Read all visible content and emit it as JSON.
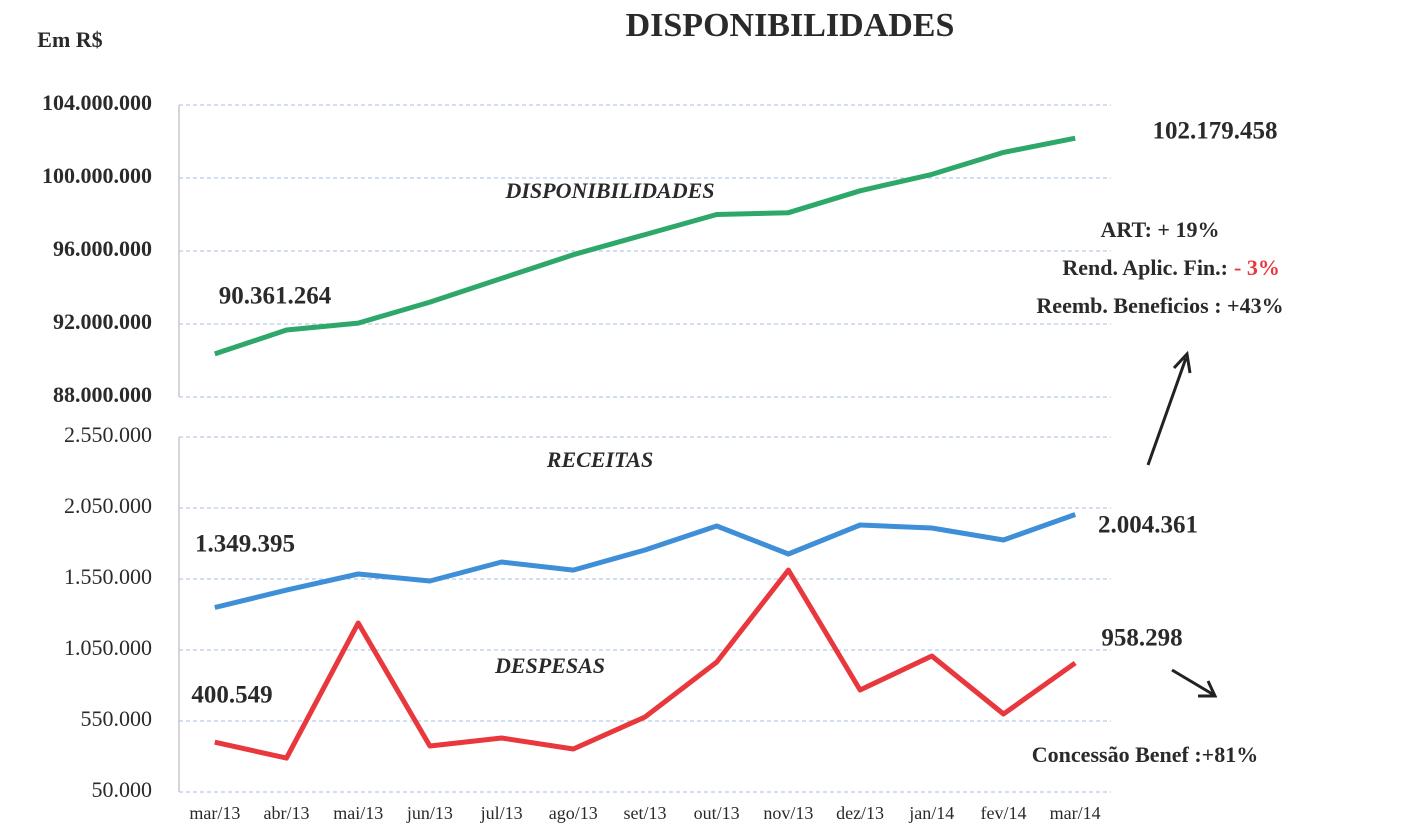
{
  "chart_data": [
    {
      "type": "line",
      "title": "DISPONIBILIDADES",
      "y_label": "Em R$",
      "categories": [
        "mar/13",
        "abr/13",
        "mai/13",
        "jun/13",
        "jul/13",
        "ago/13",
        "set/13",
        "out/13",
        "nov/13",
        "dez/13",
        "jan/14",
        "fev/14",
        "mar/14"
      ],
      "series": [
        {
          "name": "DISPONIBILIDADES",
          "color": "#2ea86a",
          "values": [
            90361264,
            91670000,
            92050000,
            93200000,
            94500000,
            95800000,
            96900000,
            98000000,
            98100000,
            99300000,
            100200000,
            101400000,
            102179458
          ],
          "value_labels": [
            "90.361.264",
            null,
            null,
            null,
            null,
            null,
            null,
            null,
            null,
            null,
            null,
            null,
            "102.179.458"
          ]
        }
      ],
      "ylim": [
        88000000,
        104000000
      ],
      "yticks": [
        {
          "value": 88000000,
          "label": "88.000.000"
        },
        {
          "value": 92000000,
          "label": "92.000.000"
        },
        {
          "value": 96000000,
          "label": "96.000.000"
        },
        {
          "value": 100000000,
          "label": "100.000.000"
        },
        {
          "value": 104000000,
          "label": "104.000.000"
        }
      ],
      "grid": true,
      "annotations": [
        "ART: + 19%",
        "Rend. Aplic. Fin.:",
        "- 3%",
        "Reemb. Beneficios : +43%"
      ]
    },
    {
      "type": "line",
      "categories": [
        "mar/13",
        "abr/13",
        "mai/13",
        "jun/13",
        "jul/13",
        "ago/13",
        "set/13",
        "out/13",
        "nov/13",
        "dez/13",
        "jan/14",
        "fev/14",
        "mar/14"
      ],
      "series": [
        {
          "name": "RECEITAS",
          "color": "#3f8fd8",
          "values": [
            1349395,
            1472000,
            1585000,
            1536000,
            1670000,
            1613000,
            1754000,
            1923000,
            1726000,
            1930000,
            1909000,
            1825000,
            2004361
          ],
          "value_labels": [
            "1.349.395",
            null,
            null,
            null,
            null,
            null,
            null,
            null,
            null,
            null,
            null,
            null,
            "2.004.361"
          ]
        },
        {
          "name": "DESPESAS",
          "color": "#e8383d",
          "values": [
            400549,
            289000,
            1240000,
            374000,
            430000,
            353000,
            578000,
            965000,
            1613000,
            768000,
            1008000,
            599000,
            958298
          ],
          "value_labels": [
            "400.549",
            null,
            null,
            null,
            null,
            null,
            null,
            null,
            null,
            null,
            null,
            null,
            "958.298"
          ]
        }
      ],
      "ylim": [
        50000,
        2550000
      ],
      "yticks": [
        {
          "value": 50000,
          "label": "50.000"
        },
        {
          "value": 550000,
          "label": "550.000"
        },
        {
          "value": 1050000,
          "label": "1.050.000"
        },
        {
          "value": 1550000,
          "label": "1.550.000"
        },
        {
          "value": 2050000,
          "label": "2.050.000"
        },
        {
          "value": 2550000,
          "label": "2.550.000"
        }
      ],
      "grid": true,
      "annotations": [
        "Concessão  Benef :+81%"
      ]
    }
  ]
}
